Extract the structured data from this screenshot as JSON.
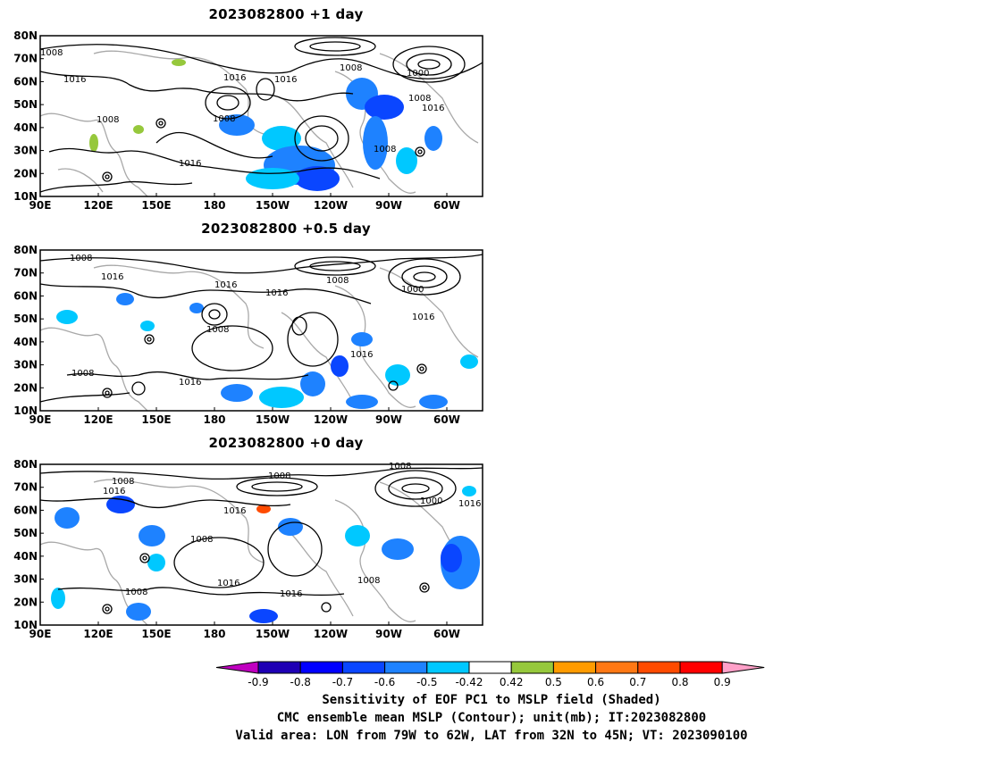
{
  "panels": [
    {
      "title": "2023082800  +1  day"
    },
    {
      "title": "2023082800  +0.5  day"
    },
    {
      "title": "2023082800  +0  day"
    }
  ],
  "lat_labels": [
    "80N",
    "70N",
    "60N",
    "50N",
    "40N",
    "30N",
    "20N",
    "10N"
  ],
  "lon_labels": [
    "90E",
    "120E",
    "150E",
    "180",
    "150W",
    "120W",
    "90W",
    "60W"
  ],
  "contour_labels": [
    "1008",
    "1016",
    "1000"
  ],
  "colorbar": {
    "colors": [
      "#c000c0",
      "#1e00b4",
      "#0000ff",
      "#0a46ff",
      "#1e82ff",
      "#00c8ff",
      "#ffffff",
      "#96c83c",
      "#ff9b00",
      "#ff7814",
      "#ff4b00",
      "#ff0000",
      "#ffa0c8"
    ],
    "tick_labels": [
      "-0.9",
      "-0.8",
      "-0.7",
      "-0.6",
      "-0.5",
      "-0.42",
      "0.42",
      "0.5",
      "0.6",
      "0.7",
      "0.8",
      "0.9"
    ]
  },
  "captions": {
    "line1": "Sensitivity of EOF PC1 to MSLP field (Shaded)",
    "line2": "CMC ensemble mean MSLP (Contour); unit(mb); IT:2023082800",
    "line3": "Valid area: LON from 79W to 62W, LAT from 32N to 45N; VT: 2023090100"
  }
}
